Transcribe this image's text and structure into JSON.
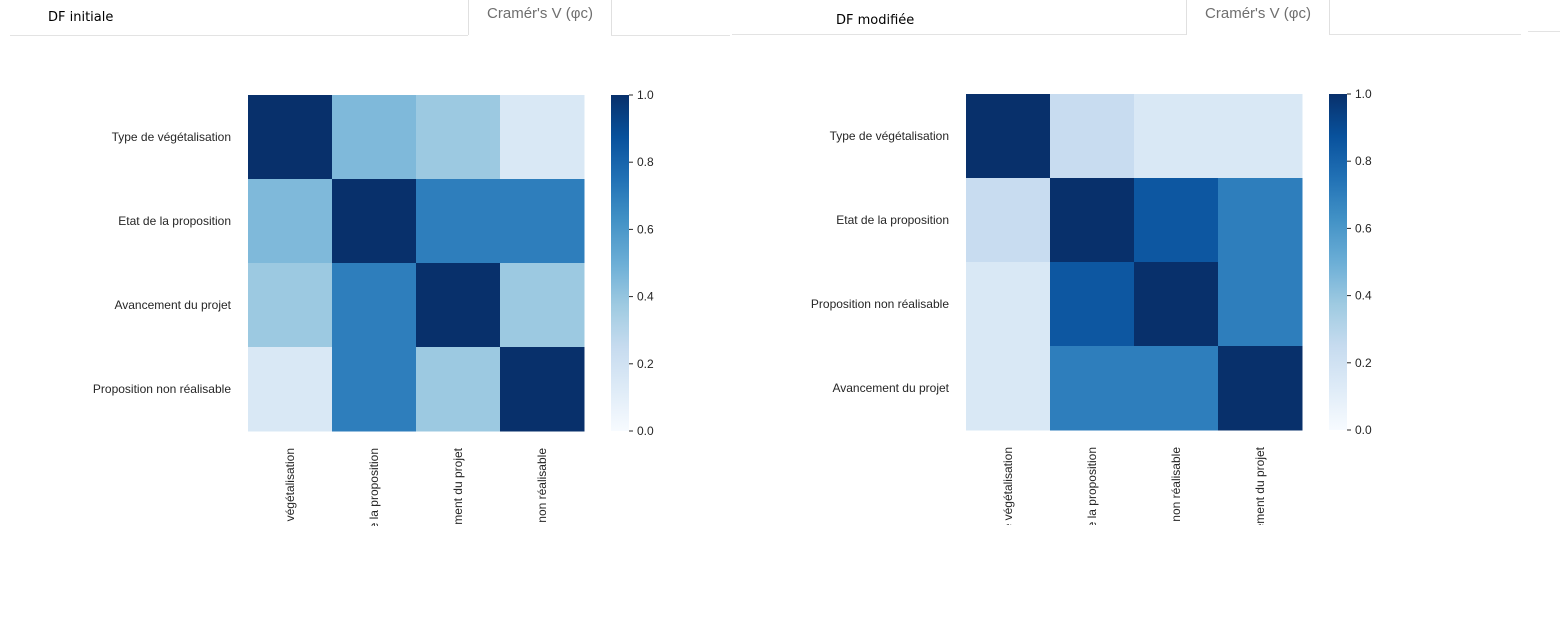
{
  "panels": [
    {
      "title": "DF initiale",
      "tab_label": "Cramér's V (φc)",
      "chart_data": {
        "type": "heatmap",
        "rows": [
          "Type de végétalisation",
          "Etat de la proposition",
          "Avancement du projet",
          "Proposition non réalisable"
        ],
        "columns": [
          "végétalisation",
          "e la proposition",
          "ment du projet",
          "non réalisable"
        ],
        "values": [
          [
            1.0,
            0.45,
            0.38,
            0.15
          ],
          [
            0.45,
            1.0,
            0.7,
            0.7
          ],
          [
            0.38,
            0.7,
            1.0,
            0.38
          ],
          [
            0.15,
            0.7,
            0.38,
            1.0
          ]
        ],
        "colorbar": {
          "min": 0.0,
          "max": 1.0,
          "ticks": [
            "0.0",
            "0.2",
            "0.4",
            "0.6",
            "0.8",
            "1.0"
          ],
          "colormap": "Blues"
        }
      }
    },
    {
      "title": "DF modifiée",
      "tab_label": "Cramér's V (φc)",
      "chart_data": {
        "type": "heatmap",
        "rows": [
          "Type de végétalisation",
          "Etat de la proposition",
          "Proposition non réalisable",
          "Avancement du projet"
        ],
        "columns": [
          "e végétalisation",
          "e la proposition",
          "non réalisable",
          "ement du projet"
        ],
        "values": [
          [
            1.0,
            0.24,
            0.15,
            0.15
          ],
          [
            0.24,
            1.0,
            0.85,
            0.7
          ],
          [
            0.15,
            0.85,
            1.0,
            0.7
          ],
          [
            0.15,
            0.7,
            0.7,
            1.0
          ]
        ],
        "colorbar": {
          "min": 0.0,
          "max": 1.0,
          "ticks": [
            "0.0",
            "0.2",
            "0.4",
            "0.6",
            "0.8",
            "1.0"
          ],
          "colormap": "Blues"
        }
      }
    }
  ]
}
